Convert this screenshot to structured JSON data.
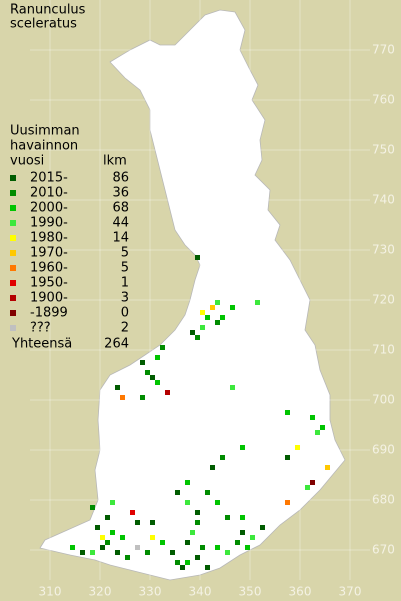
{
  "map": {
    "title": [
      "Ranunculus",
      "sceleratus"
    ],
    "legend": {
      "header": [
        "Uusimman",
        "havainnon",
        "vuosi"
      ],
      "count_header": "lkm",
      "rows": [
        {
          "label": "2015-",
          "count": 86,
          "color": "#005c00"
        },
        {
          "label": "2010-",
          "count": 36,
          "color": "#008c00"
        },
        {
          "label": "2000-",
          "count": 68,
          "color": "#00c400"
        },
        {
          "label": "1990-",
          "count": 44,
          "color": "#3ce83c"
        },
        {
          "label": "1980-",
          "count": 14,
          "color": "#ffff00"
        },
        {
          "label": "1970-",
          "count": 5,
          "color": "#ffc800"
        },
        {
          "label": "1960-",
          "count": 5,
          "color": "#ff7800"
        },
        {
          "label": "1950-",
          "count": 1,
          "color": "#e00000"
        },
        {
          "label": "1900-",
          "count": 3,
          "color": "#b40000"
        },
        {
          "label": "-1899",
          "count": 0,
          "color": "#800000"
        },
        {
          "label": "???",
          "count": 2,
          "color": "#c0c0c0"
        }
      ],
      "total": {
        "label": "Yhteensä",
        "count": 264
      }
    },
    "xticks": [
      310,
      320,
      330,
      340,
      350,
      360,
      370
    ],
    "yticks": [
      770,
      760,
      750,
      740,
      730,
      720,
      710,
      700,
      690,
      680,
      670
    ],
    "points": [
      [
        339,
        728,
        0
      ],
      [
        338,
        713,
        0
      ],
      [
        339,
        712,
        1
      ],
      [
        340,
        714,
        3
      ],
      [
        341,
        716,
        2
      ],
      [
        342,
        718,
        5
      ],
      [
        343,
        719,
        3
      ],
      [
        344,
        716,
        2
      ],
      [
        340,
        717,
        4
      ],
      [
        346,
        718,
        2
      ],
      [
        351,
        719,
        3
      ],
      [
        343,
        715,
        1
      ],
      [
        328,
        707,
        0
      ],
      [
        329,
        705,
        1
      ],
      [
        330,
        704,
        0
      ],
      [
        331,
        708,
        2
      ],
      [
        332,
        710,
        1
      ],
      [
        331,
        703,
        2
      ],
      [
        323,
        702,
        0
      ],
      [
        324,
        700,
        6
      ],
      [
        333,
        701,
        8
      ],
      [
        328,
        700,
        1
      ],
      [
        346,
        702,
        3
      ],
      [
        357,
        697,
        2
      ],
      [
        362,
        696,
        2
      ],
      [
        363,
        693,
        3
      ],
      [
        364,
        694,
        2
      ],
      [
        359,
        690,
        4
      ],
      [
        357,
        688,
        0
      ],
      [
        365,
        686,
        5
      ],
      [
        362,
        683,
        9
      ],
      [
        361,
        682,
        3
      ],
      [
        348,
        690,
        2
      ],
      [
        344,
        688,
        1
      ],
      [
        342,
        686,
        0
      ],
      [
        337,
        683,
        2
      ],
      [
        335,
        681,
        0
      ],
      [
        337,
        679,
        3
      ],
      [
        341,
        681,
        1
      ],
      [
        343,
        679,
        2
      ],
      [
        339,
        677,
        0
      ],
      [
        339,
        675,
        1
      ],
      [
        348,
        676,
        2
      ],
      [
        352,
        674,
        1
      ],
      [
        357,
        679,
        6
      ],
      [
        322,
        679,
        3
      ],
      [
        321,
        676,
        0
      ],
      [
        320,
        672,
        4
      ],
      [
        320,
        670,
        0
      ],
      [
        321,
        671,
        1
      ],
      [
        323,
        669,
        0
      ],
      [
        324,
        672,
        2
      ],
      [
        325,
        668,
        1
      ],
      [
        318,
        669,
        3
      ],
      [
        314,
        670,
        2
      ],
      [
        316,
        669,
        0
      ],
      [
        329,
        669,
        1
      ],
      [
        330,
        675,
        0
      ],
      [
        332,
        671,
        2
      ],
      [
        334,
        669,
        0
      ],
      [
        335,
        667,
        1
      ],
      [
        336,
        666,
        0
      ],
      [
        337,
        667,
        2
      ],
      [
        339,
        668,
        0
      ],
      [
        340,
        670,
        1
      ],
      [
        341,
        666,
        0
      ],
      [
        343,
        670,
        2
      ],
      [
        345,
        669,
        3
      ],
      [
        347,
        671,
        1
      ],
      [
        348,
        673,
        0
      ],
      [
        349,
        670,
        2
      ],
      [
        350,
        672,
        3
      ],
      [
        352,
        674,
        0
      ],
      [
        326,
        677,
        7
      ],
      [
        327,
        675,
        0
      ],
      [
        330,
        672,
        4
      ],
      [
        337,
        671,
        0
      ],
      [
        345,
        676,
        1
      ],
      [
        338,
        673,
        3
      ],
      [
        319,
        674,
        0
      ],
      [
        318,
        678,
        1
      ],
      [
        322,
        673,
        2
      ],
      [
        327,
        670,
        10
      ]
    ]
  }
}
